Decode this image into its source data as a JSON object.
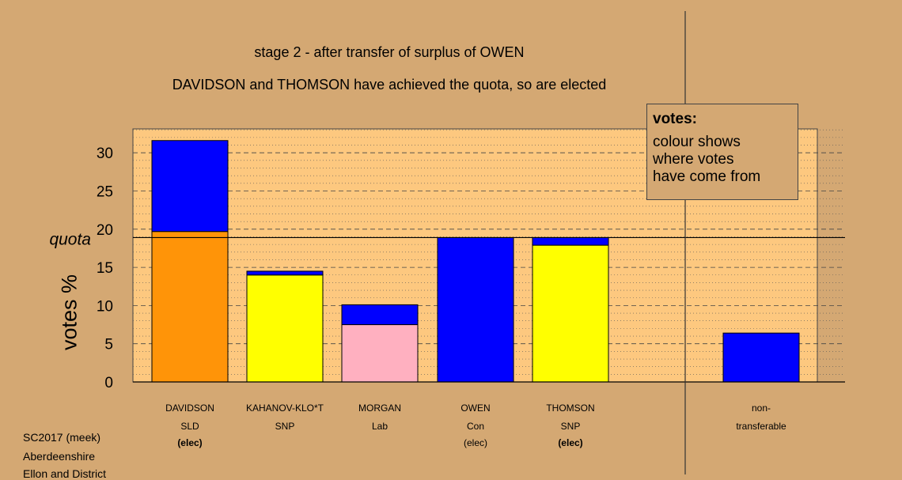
{
  "title": "stage 2 - after transfer of surplus of OWEN",
  "subtitle": "DAVIDSON and THOMSON have achieved the quota, so are elected",
  "legend": {
    "title": "votes:",
    "lines": [
      "colour shows",
      "where votes",
      "have come from"
    ]
  },
  "footer": [
    "SC2017 (meek)",
    "Aberdeenshire",
    "Ellon and District"
  ],
  "colors": {
    "background": "#d4a873",
    "plot_area": "#fdc87f",
    "transfer_blue": "#0000ff",
    "SLD": "#ff9408",
    "SNP": "#ffff00",
    "Lab": "#ffb0c0"
  },
  "chart_data": {
    "type": "bar",
    "stacked": true,
    "ylabel": "votes %",
    "ylim": [
      0,
      33
    ],
    "yticks": [
      0,
      5,
      10,
      15,
      20,
      25,
      30
    ],
    "quota": 18.9,
    "quota_label": "quota",
    "grid": true,
    "categories": [
      {
        "name": "DAVIDSON",
        "party": "SLD",
        "note": "(elec)",
        "note_bold": true
      },
      {
        "name": "KAHANOV-KLO*T",
        "party": "SNP",
        "note": "",
        "note_bold": false
      },
      {
        "name": "MORGAN",
        "party": "Lab",
        "note": "",
        "note_bold": false
      },
      {
        "name": "OWEN",
        "party": "Con",
        "note": "(elec)",
        "note_bold": false
      },
      {
        "name": "THOMSON",
        "party": "SNP",
        "note": "(elec)",
        "note_bold": true
      },
      {
        "name": "non-",
        "party": "transferable",
        "note": "",
        "note_bold": false
      }
    ],
    "bars": [
      {
        "first_preference": 19.7,
        "first_color": "#ff9408",
        "transfers": 11.9
      },
      {
        "first_preference": 14.0,
        "first_color": "#ffff00",
        "transfers": 0.5
      },
      {
        "first_preference": 7.5,
        "first_color": "#ffb0c0",
        "transfers": 2.6
      },
      {
        "first_preference": 0,
        "first_color": "#0000ff",
        "transfers": 18.9
      },
      {
        "first_preference": 17.9,
        "first_color": "#ffff00",
        "transfers": 1.0
      },
      {
        "first_preference": 0,
        "first_color": "#0000ff",
        "transfers": 6.4
      }
    ]
  }
}
